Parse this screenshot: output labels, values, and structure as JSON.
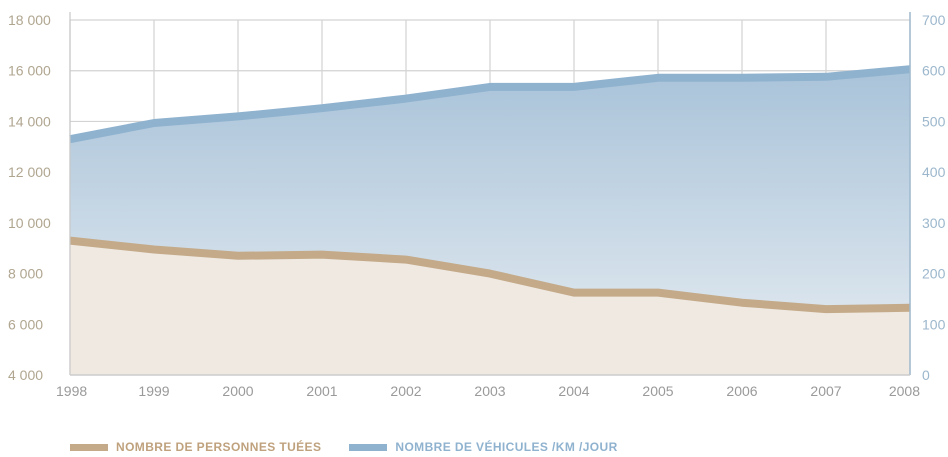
{
  "chart_data": {
    "type": "area",
    "x": [
      1998,
      1999,
      2000,
      2001,
      2002,
      2003,
      2004,
      2005,
      2006,
      2007,
      2008
    ],
    "y_left_ticks": [
      "18 000",
      "16 000",
      "14 000",
      "12 000",
      "10 000",
      "8 000",
      "6 000",
      "4 000"
    ],
    "y_left_range": [
      4000,
      18000
    ],
    "y_right_ticks": [
      "700",
      "600",
      "500",
      "400",
      "300",
      "200",
      "100",
      "0"
    ],
    "y_right_range": [
      0,
      700
    ],
    "grid": true,
    "legend_position": "bottom-left",
    "series": [
      {
        "name": "NOMBRE DE PERSONNES TUÉES",
        "axis": "left",
        "color": "#c4aa88",
        "fill": "#efe9e2",
        "values": [
          9300,
          8950,
          8700,
          8750,
          8550,
          8000,
          7250,
          7250,
          6850,
          6600,
          6650
        ]
      },
      {
        "name": "NOMBRE DE VÉHICULES /KM /JOUR",
        "axis": "right",
        "color": "#8fb2cf",
        "fill_top": "#aac4da",
        "fill_bottom": "#e6edf2",
        "values": [
          465,
          497,
          510,
          526,
          545,
          568,
          568,
          586,
          586,
          588,
          603
        ]
      }
    ]
  }
}
